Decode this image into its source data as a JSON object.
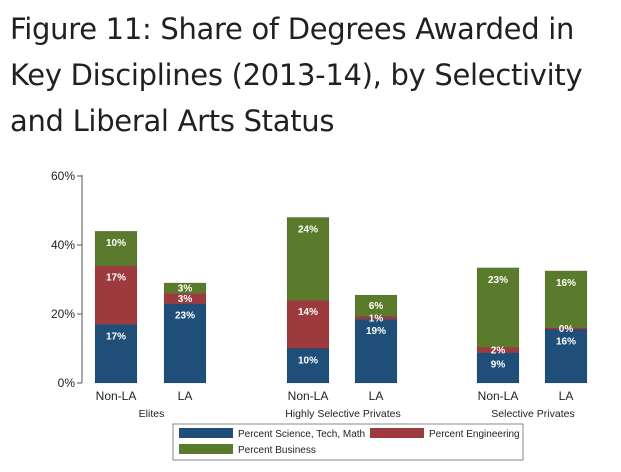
{
  "title": "Figure 11: Share of Degrees Awarded in Key Disciplines (2013-14), by Selectivity and Liberal Arts Status",
  "colors": {
    "science_tech_math": "#1f4e79",
    "engineering": "#9c3a3e",
    "business": "#5a7a2c",
    "axis": "#555555",
    "text": "#222222"
  },
  "chart_data": {
    "type": "bar",
    "stacked": true,
    "title": "",
    "xlabel": "",
    "ylabel": "",
    "ylim": [
      0,
      0.6
    ],
    "yticks": [
      0,
      0.2,
      0.4,
      0.6
    ],
    "ytick_labels": [
      "0%",
      "20%",
      "40%",
      "60%"
    ],
    "groups": [
      {
        "name": "Elites",
        "categories": [
          "Non-LA",
          "LA"
        ]
      },
      {
        "name": "Highly Selective Privates",
        "categories": [
          "Non-LA",
          "LA"
        ]
      },
      {
        "name": "Selective Privates",
        "categories": [
          "Non-LA",
          "LA"
        ]
      }
    ],
    "series": [
      {
        "name": "Percent Science, Tech, Math",
        "color": "#1f4e79",
        "values": [
          0.17,
          0.23,
          0.1,
          0.185,
          0.088,
          0.155
        ],
        "labels": [
          "17%",
          "23%",
          "10%",
          "19%",
          "9%",
          "16%"
        ]
      },
      {
        "name": "Percent Engineering",
        "color": "#9c3a3e",
        "values": [
          0.17,
          0.03,
          0.14,
          0.008,
          0.016,
          0.005
        ],
        "labels": [
          "17%",
          "3%",
          "14%",
          "1%",
          "2%",
          "0%"
        ]
      },
      {
        "name": "Percent Business",
        "color": "#5a7a2c",
        "values": [
          0.1,
          0.03,
          0.24,
          0.062,
          0.23,
          0.165
        ],
        "labels": [
          "10%",
          "3%",
          "24%",
          "6%",
          "23%",
          "16%"
        ]
      }
    ],
    "legend": {
      "placement": "bottom-center",
      "entries": [
        "Percent Science, Tech, Math",
        "Percent Engineering",
        "Percent Business"
      ]
    },
    "grid": false
  }
}
